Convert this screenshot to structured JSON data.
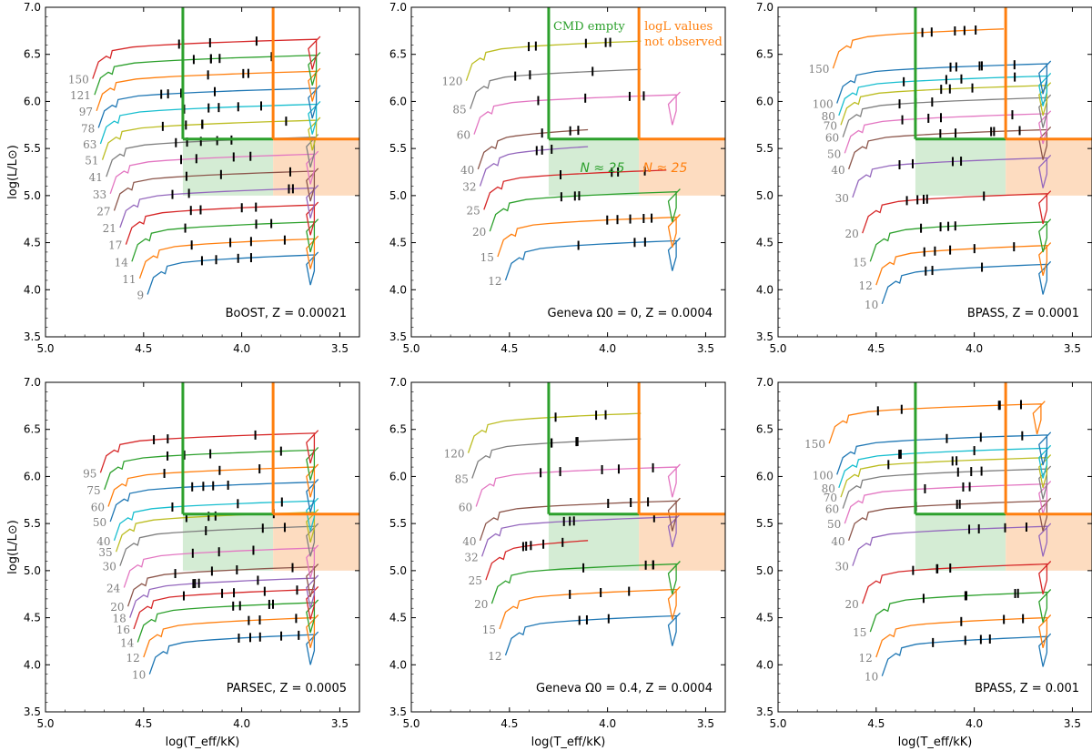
{
  "figure": {
    "xlabel": "log(T_eff/kK)",
    "ylabel": "log(L/L⊙)",
    "xlim": [
      5.0,
      3.4
    ],
    "ylim": [
      3.5,
      7.0
    ],
    "xticks": [
      "5.0",
      "4.5",
      "4.0",
      "3.5"
    ],
    "yticks": [
      "3.5",
      "4.0",
      "4.5",
      "5.0",
      "5.5",
      "6.0",
      "6.5",
      "7.0"
    ],
    "colors": {
      "green_line": "#2ca02c",
      "orange_line": "#ff7f0e",
      "green_fill": "#d4ecd4",
      "orange_fill": "#fddcc0",
      "mass_label": "#808080"
    },
    "series_colors": [
      "#1f77b4",
      "#ff7f0e",
      "#2ca02c",
      "#d62728",
      "#9467bd",
      "#8c564b",
      "#e377c2",
      "#7f7f7f",
      "#bcbd22",
      "#17becf"
    ]
  },
  "annotations": {
    "cmd_empty": "CMD empty",
    "logl_line1": "logL values",
    "logl_line2": "not observed",
    "n_green": "N ≈ 25",
    "n_orange": "N ≈ 25"
  },
  "chart_data": [
    {
      "type": "line",
      "title": "BoOST, Z = 0.00021",
      "green_teff": 4.3,
      "orange_teff": 3.84,
      "region_top_L": 5.6,
      "region_bottom_L": 5.0,
      "regions_drawn": true,
      "tracks": [
        {
          "mass": "9",
          "start": [
            4.48,
            3.95
          ],
          "end_teff": 3.63
        },
        {
          "mass": "11",
          "start": [
            4.52,
            4.12
          ],
          "end_teff": 3.63
        },
        {
          "mass": "14",
          "start": [
            4.56,
            4.3
          ],
          "end_teff": 3.63
        },
        {
          "mass": "17",
          "start": [
            4.59,
            4.48
          ],
          "end_teff": 3.63
        },
        {
          "mass": "21",
          "start": [
            4.62,
            4.66
          ],
          "end_teff": 3.63
        },
        {
          "mass": "27",
          "start": [
            4.65,
            4.84
          ],
          "end_teff": 3.63
        },
        {
          "mass": "33",
          "start": [
            4.67,
            5.02
          ],
          "end_teff": 3.63
        },
        {
          "mass": "41",
          "start": [
            4.69,
            5.2
          ],
          "end_teff": 3.63
        },
        {
          "mass": "51",
          "start": [
            4.71,
            5.38
          ],
          "end_teff": 3.62
        },
        {
          "mass": "63",
          "start": [
            4.72,
            5.55
          ],
          "end_teff": 3.62
        },
        {
          "mass": "78",
          "start": [
            4.73,
            5.72
          ],
          "end_teff": 3.62
        },
        {
          "mass": "97",
          "start": [
            4.74,
            5.9
          ],
          "end_teff": 3.62
        },
        {
          "mass": "121",
          "start": [
            4.75,
            6.07
          ],
          "end_teff": 3.62
        },
        {
          "mass": "150",
          "start": [
            4.76,
            6.24
          ],
          "end_teff": 3.62
        }
      ]
    },
    {
      "type": "line",
      "title": "Geneva Ω0 = 0, Z = 0.0004",
      "green_teff": 4.3,
      "orange_teff": 3.84,
      "region_top_L": 5.6,
      "region_bottom_L": 5.0,
      "regions_drawn": true,
      "annotated": true,
      "tracks": [
        {
          "mass": "12",
          "start": [
            4.52,
            4.1
          ],
          "end_teff": 3.65
        },
        {
          "mass": "15",
          "start": [
            4.56,
            4.35
          ],
          "end_teff": 3.65
        },
        {
          "mass": "20",
          "start": [
            4.6,
            4.62
          ],
          "end_teff": 3.65
        },
        {
          "mass": "25",
          "start": [
            4.63,
            4.85
          ],
          "end_teff": 3.7
        },
        {
          "mass": "32",
          "start": [
            4.65,
            5.1
          ],
          "end_teff": 4.1
        },
        {
          "mass": "40",
          "start": [
            4.66,
            5.28
          ],
          "end_teff": 4.1
        },
        {
          "mass": "60",
          "start": [
            4.68,
            5.65
          ],
          "end_teff": 3.65
        },
        {
          "mass": "85",
          "start": [
            4.7,
            5.92
          ],
          "end_teff": 3.83
        },
        {
          "mass": "120",
          "start": [
            4.72,
            6.22
          ],
          "end_teff": 3.83
        }
      ]
    },
    {
      "type": "line",
      "title": "BPASS, Z = 0.0001",
      "green_teff": 4.3,
      "orange_teff": 3.84,
      "region_top_L": 5.6,
      "region_bottom_L": 5.0,
      "regions_drawn": true,
      "tracks": [
        {
          "mass": "10",
          "start": [
            4.47,
            3.85
          ],
          "end_teff": 3.63
        },
        {
          "mass": "12",
          "start": [
            4.5,
            4.05
          ],
          "end_teff": 3.63
        },
        {
          "mass": "15",
          "start": [
            4.53,
            4.3
          ],
          "end_teff": 3.63
        },
        {
          "mass": "20",
          "start": [
            4.57,
            4.6
          ],
          "end_teff": 3.63
        },
        {
          "mass": "30",
          "start": [
            4.62,
            4.98
          ],
          "end_teff": 3.63
        },
        {
          "mass": "40",
          "start": [
            4.64,
            5.28
          ],
          "end_teff": 3.63
        },
        {
          "mass": "50",
          "start": [
            4.66,
            5.45
          ],
          "end_teff": 3.63
        },
        {
          "mass": "60",
          "start": [
            4.67,
            5.62
          ],
          "end_teff": 3.63
        },
        {
          "mass": "70",
          "start": [
            4.68,
            5.75
          ],
          "end_teff": 3.63
        },
        {
          "mass": "80",
          "start": [
            4.69,
            5.85
          ],
          "end_teff": 3.63
        },
        {
          "mass": "100",
          "start": [
            4.7,
            5.98
          ],
          "end_teff": 3.63
        },
        {
          "mass": "150",
          "start": [
            4.72,
            6.35
          ],
          "end_teff": 3.85
        }
      ]
    },
    {
      "type": "line",
      "title": "PARSEC, Z = 0.0005",
      "green_teff": 4.3,
      "orange_teff": 3.84,
      "region_top_L": 5.6,
      "region_bottom_L": 5.0,
      "regions_drawn": true,
      "tracks": [
        {
          "mass": "10",
          "start": [
            4.47,
            3.9
          ],
          "end_teff": 3.63
        },
        {
          "mass": "12",
          "start": [
            4.5,
            4.08
          ],
          "end_teff": 3.63
        },
        {
          "mass": "14",
          "start": [
            4.53,
            4.24
          ],
          "end_teff": 3.63
        },
        {
          "mass": "16",
          "start": [
            4.55,
            4.38
          ],
          "end_teff": 3.63
        },
        {
          "mass": "18",
          "start": [
            4.57,
            4.5
          ],
          "end_teff": 3.63
        },
        {
          "mass": "20",
          "start": [
            4.58,
            4.62
          ],
          "end_teff": 3.63
        },
        {
          "mass": "24",
          "start": [
            4.6,
            4.82
          ],
          "end_teff": 3.63
        },
        {
          "mass": "30",
          "start": [
            4.62,
            5.05
          ],
          "end_teff": 3.63
        },
        {
          "mass": "35",
          "start": [
            4.64,
            5.2
          ],
          "end_teff": 3.63
        },
        {
          "mass": "40",
          "start": [
            4.65,
            5.32
          ],
          "end_teff": 3.63
        },
        {
          "mass": "50",
          "start": [
            4.67,
            5.52
          ],
          "end_teff": 3.63
        },
        {
          "mass": "60",
          "start": [
            4.68,
            5.68
          ],
          "end_teff": 3.63
        },
        {
          "mass": "75",
          "start": [
            4.7,
            5.86
          ],
          "end_teff": 3.63
        },
        {
          "mass": "95",
          "start": [
            4.72,
            6.04
          ],
          "end_teff": 3.63
        }
      ]
    },
    {
      "type": "line",
      "title": "Geneva Ω0 = 0.4, Z = 0.0004",
      "green_teff": 4.3,
      "orange_teff": 3.84,
      "region_top_L": 5.6,
      "region_bottom_L": 5.0,
      "regions_drawn": true,
      "tracks": [
        {
          "mass": "12",
          "start": [
            4.52,
            4.1
          ],
          "end_teff": 3.65
        },
        {
          "mass": "15",
          "start": [
            4.55,
            4.38
          ],
          "end_teff": 3.65
        },
        {
          "mass": "20",
          "start": [
            4.59,
            4.65
          ],
          "end_teff": 3.65
        },
        {
          "mass": "25",
          "start": [
            4.62,
            4.9
          ],
          "end_teff": 4.1
        },
        {
          "mass": "32",
          "start": [
            4.64,
            5.15
          ],
          "end_teff": 3.65
        },
        {
          "mass": "40",
          "start": [
            4.65,
            5.32
          ],
          "end_teff": 3.65
        },
        {
          "mass": "60",
          "start": [
            4.67,
            5.68
          ],
          "end_teff": 3.65
        },
        {
          "mass": "85",
          "start": [
            4.69,
            5.98
          ],
          "end_teff": 3.83
        },
        {
          "mass": "120",
          "start": [
            4.71,
            6.25
          ],
          "end_teff": 3.83
        }
      ]
    },
    {
      "type": "line",
      "title": "BPASS, Z = 0.001",
      "green_teff": 4.3,
      "orange_teff": 3.84,
      "region_top_L": 5.6,
      "region_bottom_L": 5.0,
      "regions_drawn": true,
      "tracks": [
        {
          "mass": "10",
          "start": [
            4.47,
            3.88
          ],
          "end_teff": 3.63
        },
        {
          "mass": "12",
          "start": [
            4.5,
            4.08
          ],
          "end_teff": 3.63
        },
        {
          "mass": "15",
          "start": [
            4.53,
            4.35
          ],
          "end_teff": 3.63
        },
        {
          "mass": "20",
          "start": [
            4.57,
            4.65
          ],
          "end_teff": 3.63
        },
        {
          "mass": "30",
          "start": [
            4.62,
            5.05
          ],
          "end_teff": 3.63
        },
        {
          "mass": "40",
          "start": [
            4.64,
            5.32
          ],
          "end_teff": 3.63
        },
        {
          "mass": "50",
          "start": [
            4.66,
            5.5
          ],
          "end_teff": 3.63
        },
        {
          "mass": "60",
          "start": [
            4.67,
            5.66
          ],
          "end_teff": 3.63
        },
        {
          "mass": "70",
          "start": [
            4.68,
            5.78
          ],
          "end_teff": 3.63
        },
        {
          "mass": "80",
          "start": [
            4.69,
            5.88
          ],
          "end_teff": 3.63
        },
        {
          "mass": "100",
          "start": [
            4.7,
            6.02
          ],
          "end_teff": 3.63
        },
        {
          "mass": "150",
          "start": [
            4.74,
            6.35
          ],
          "end_teff": 3.66
        }
      ]
    }
  ]
}
